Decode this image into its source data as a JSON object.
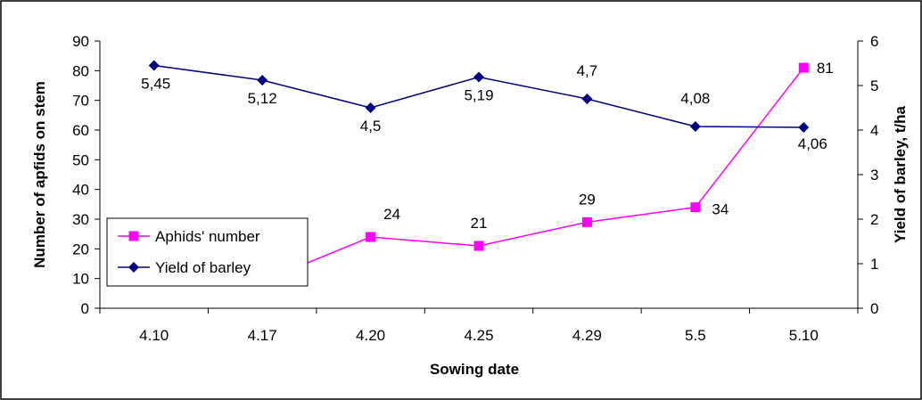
{
  "chart_data": {
    "type": "line",
    "categories": [
      "4.10",
      "4.17",
      "4.20",
      "4.25",
      "4.29",
      "5.5",
      "5.10"
    ],
    "xlabel": "Sowing date",
    "ylabel_left": "Number of apfids on stem",
    "ylabel_right": "Yield of barley, t/ha",
    "ylim_left": [
      0,
      90
    ],
    "yticks_left": [
      "0",
      "10",
      "20",
      "30",
      "40",
      "50",
      "60",
      "70",
      "80",
      "90"
    ],
    "ylim_right": [
      0,
      6
    ],
    "yticks_right": [
      "0",
      "1",
      "2",
      "3",
      "4",
      "5",
      "6"
    ],
    "grid": false,
    "legend_position": "left",
    "series": [
      {
        "name": "Aphids' number",
        "axis": "left",
        "color": "#ff00ff",
        "marker": "square",
        "values": [
          11,
          9,
          24,
          21,
          29,
          34,
          81
        ],
        "labels": [
          "11",
          "9",
          "24",
          "21",
          "29",
          "34",
          "81"
        ]
      },
      {
        "name": "Yield of barley",
        "axis": "right",
        "color": "#000080",
        "marker": "diamond",
        "values": [
          5.45,
          5.12,
          4.5,
          5.19,
          4.7,
          4.08,
          4.06
        ],
        "labels": [
          "5,45",
          "5,12",
          "4,5",
          "5,19",
          "4,7",
          "4,08",
          "4,06"
        ]
      }
    ]
  }
}
